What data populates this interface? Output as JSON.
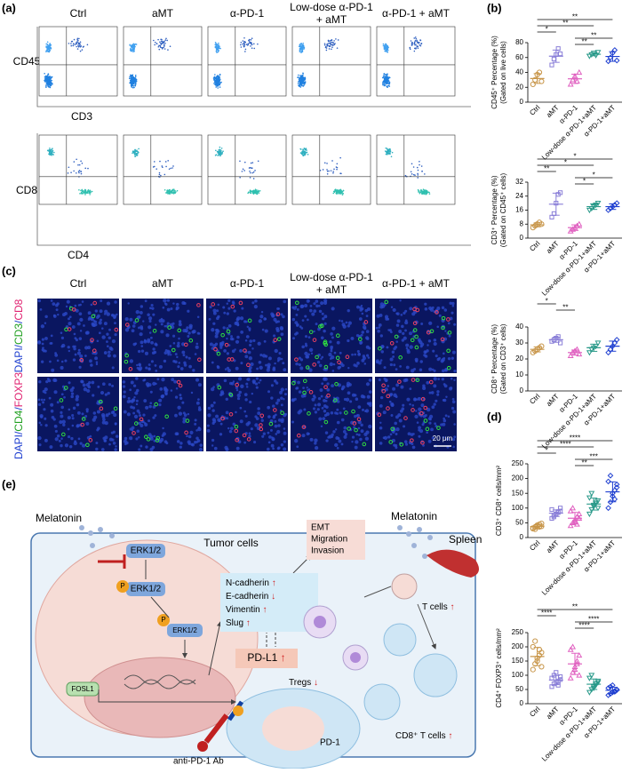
{
  "panel_labels": [
    "(a)",
    "(b)",
    "(c)",
    "(d)",
    "(e)"
  ],
  "flow": {
    "columns": [
      [
        "Ctrl"
      ],
      [
        "aMT"
      ],
      [
        "α-PD-1"
      ],
      [
        "Low-dose α-PD-1",
        "+ aMT"
      ],
      [
        "α-PD-1 + aMT"
      ]
    ],
    "row1_axes": [
      "CD45",
      "CD3"
    ],
    "row2_axes": [
      "CD8",
      "CD4"
    ]
  },
  "imaging": {
    "columns": [
      [
        "Ctrl"
      ],
      [
        "aMT"
      ],
      [
        "α-PD-1"
      ],
      [
        "Low-dose α-PD-1",
        "+ aMT"
      ],
      [
        "α-PD-1 + aMT"
      ]
    ],
    "row_labels": [
      [
        "DAPI/",
        "CD3",
        "/",
        "CD8"
      ],
      [
        "DAPI/",
        "CD4",
        "/",
        "FOXP3"
      ]
    ],
    "scale_bar": "20 μm"
  },
  "chart_data": [
    {
      "type": "scatter",
      "ylabel": [
        "CD45⁺ Percentage (%)",
        "(Gated on live cells)"
      ],
      "categories": [
        "Ctrl",
        "aMT",
        "α-PD-1",
        "Low-dose α-PD-1+aMT",
        "α-PD-1+aMT"
      ],
      "ylim": [
        0,
        80
      ],
      "yticks": [
        0,
        20,
        40,
        60,
        80
      ],
      "series": [
        {
          "name": "Ctrl",
          "color": "#c8964a",
          "marker": "circle",
          "values": [
            24,
            30,
            37,
            40,
            28
          ]
        },
        {
          "name": "aMT",
          "color": "#8a7fd8",
          "marker": "square",
          "values": [
            50,
            58,
            64,
            72,
            65
          ]
        },
        {
          "name": "α-PD-1",
          "color": "#e060c0",
          "marker": "triangle",
          "values": [
            24,
            30,
            35,
            28,
            40
          ]
        },
        {
          "name": "Low-dose α-PD-1+aMT",
          "color": "#2a9a8a",
          "marker": "down-triangle",
          "values": [
            62,
            64,
            66,
            63,
            67
          ]
        },
        {
          "name": "α-PD-1+aMT",
          "color": "#2040d0",
          "marker": "diamond",
          "values": [
            55,
            60,
            66,
            70,
            56
          ]
        }
      ],
      "significance": [
        {
          "from": "Ctrl",
          "to": "α-PD-1+aMT",
          "label": "**"
        },
        {
          "from": "Ctrl",
          "to": "Low-dose α-PD-1+aMT",
          "label": "**"
        },
        {
          "from": "Ctrl",
          "to": "aMT",
          "label": "*"
        },
        {
          "from": "α-PD-1",
          "to": "α-PD-1+aMT",
          "label": "**"
        },
        {
          "from": "α-PD-1",
          "to": "Low-dose α-PD-1+aMT",
          "label": "**"
        }
      ]
    },
    {
      "type": "scatter",
      "ylabel": [
        "CD3⁺ Percentage (%)",
        "(Gated on CD45⁺ cells)"
      ],
      "categories": [
        "Ctrl",
        "aMT",
        "α-PD-1",
        "Low-dose α-PD-1+aMT",
        "α-PD-1+aMT"
      ],
      "ylim": [
        0,
        32
      ],
      "yticks": [
        0,
        8,
        16,
        24,
        32
      ],
      "series": [
        {
          "name": "Ctrl",
          "color": "#c8964a",
          "marker": "circle",
          "values": [
            6,
            7,
            8,
            9,
            8
          ]
        },
        {
          "name": "aMT",
          "color": "#8a7fd8",
          "marker": "square",
          "values": [
            12,
            14,
            20,
            25,
            26
          ]
        },
        {
          "name": "α-PD-1",
          "color": "#e060c0",
          "marker": "triangle",
          "values": [
            4,
            5,
            6,
            7,
            8
          ]
        },
        {
          "name": "Low-dose α-PD-1+aMT",
          "color": "#2a9a8a",
          "marker": "down-triangle",
          "values": [
            16,
            17,
            18,
            19,
            20
          ]
        },
        {
          "name": "α-PD-1+aMT",
          "color": "#2040d0",
          "marker": "diamond",
          "values": [
            16,
            17,
            18,
            19,
            20
          ]
        }
      ],
      "significance": [
        {
          "from": "Ctrl",
          "to": "α-PD-1+aMT",
          "label": "*"
        },
        {
          "from": "Ctrl",
          "to": "Low-dose α-PD-1+aMT",
          "label": "*"
        },
        {
          "from": "Ctrl",
          "to": "aMT",
          "label": "**"
        },
        {
          "from": "α-PD-1",
          "to": "α-PD-1+aMT",
          "label": "*"
        },
        {
          "from": "α-PD-1",
          "to": "Low-dose α-PD-1+aMT",
          "label": "*"
        }
      ]
    },
    {
      "type": "scatter",
      "ylabel": [
        "CD8⁺ Percentage (%)",
        "(Gated on CD3⁺ cells)"
      ],
      "categories": [
        "Ctrl",
        "aMT",
        "α-PD-1",
        "Low-dose α-PD-1+aMT",
        "α-PD-1+aMT"
      ],
      "ylim": [
        0,
        40
      ],
      "yticks": [
        0,
        10,
        20,
        30,
        40
      ],
      "series": [
        {
          "name": "Ctrl",
          "color": "#c8964a",
          "marker": "circle",
          "values": [
            24,
            25,
            26,
            27,
            28
          ]
        },
        {
          "name": "aMT",
          "color": "#8a7fd8",
          "marker": "square",
          "values": [
            31,
            32,
            33,
            34,
            30
          ]
        },
        {
          "name": "α-PD-1",
          "color": "#e060c0",
          "marker": "triangle",
          "values": [
            22,
            24,
            25,
            26,
            23
          ]
        },
        {
          "name": "Low-dose α-PD-1+aMT",
          "color": "#2a9a8a",
          "marker": "down-triangle",
          "values": [
            24,
            26,
            27,
            28,
            30
          ]
        },
        {
          "name": "α-PD-1+aMT",
          "color": "#2040d0",
          "marker": "diamond",
          "values": [
            24,
            26,
            28,
            30,
            32
          ]
        }
      ],
      "significance": [
        {
          "from": "Ctrl",
          "to": "aMT",
          "label": "*"
        },
        {
          "from": "aMT",
          "to": "α-PD-1",
          "label": "**"
        }
      ]
    },
    {
      "type": "scatter",
      "ylabel": [
        "CD3⁺ CD8⁺ cells/mm²"
      ],
      "categories": [
        "Ctrl",
        "aMT",
        "α-PD-1",
        "Low-dose α-PD-1+aMT",
        "α-PD-1+aMT"
      ],
      "ylim": [
        0,
        250
      ],
      "yticks": [
        0,
        50,
        100,
        150,
        200,
        250
      ],
      "series": [
        {
          "name": "Ctrl",
          "color": "#c8964a",
          "marker": "circle",
          "values": [
            30,
            35,
            40,
            45,
            38,
            32,
            28,
            42,
            36,
            48
          ]
        },
        {
          "name": "aMT",
          "color": "#8a7fd8",
          "marker": "square",
          "values": [
            65,
            75,
            80,
            85,
            90,
            95,
            70,
            78,
            88,
            100
          ]
        },
        {
          "name": "α-PD-1",
          "color": "#e060c0",
          "marker": "triangle",
          "values": [
            40,
            50,
            60,
            70,
            80,
            90,
            100,
            55,
            45,
            65
          ]
        },
        {
          "name": "Low-dose α-PD-1+aMT",
          "color": "#2a9a8a",
          "marker": "down-triangle",
          "values": [
            80,
            95,
            105,
            115,
            125,
            135,
            150,
            110,
            120,
            100
          ]
        },
        {
          "name": "α-PD-1+aMT",
          "color": "#2040d0",
          "marker": "diamond",
          "values": [
            100,
            120,
            140,
            160,
            180,
            190,
            210,
            150,
            130,
            170
          ]
        }
      ],
      "significance": [
        {
          "from": "Ctrl",
          "to": "α-PD-1+aMT",
          "label": "****"
        },
        {
          "from": "Ctrl",
          "to": "Low-dose α-PD-1+aMT",
          "label": "****"
        },
        {
          "from": "Ctrl",
          "to": "aMT",
          "label": "*"
        },
        {
          "from": "α-PD-1",
          "to": "α-PD-1+aMT",
          "label": "***"
        },
        {
          "from": "α-PD-1",
          "to": "Low-dose α-PD-1+aMT",
          "label": "**"
        }
      ]
    },
    {
      "type": "scatter",
      "ylabel": [
        "CD4⁺ FOXP3⁺ cells/mm²"
      ],
      "categories": [
        "Ctrl",
        "aMT",
        "α-PD-1",
        "Low-dose α-PD-1+aMT",
        "α-PD-1+aMT"
      ],
      "ylim": [
        0,
        250
      ],
      "yticks": [
        0,
        50,
        100,
        150,
        200,
        250
      ],
      "series": [
        {
          "name": "Ctrl",
          "color": "#c8964a",
          "marker": "circle",
          "values": [
            120,
            140,
            160,
            170,
            180,
            200,
            220,
            150,
            190,
            130
          ]
        },
        {
          "name": "aMT",
          "color": "#8a7fd8",
          "marker": "square",
          "values": [
            60,
            70,
            75,
            80,
            85,
            90,
            100,
            110,
            65,
            95
          ]
        },
        {
          "name": "α-PD-1",
          "color": "#e060c0",
          "marker": "triangle",
          "values": [
            90,
            110,
            130,
            150,
            170,
            190,
            200,
            120,
            140,
            100
          ]
        },
        {
          "name": "Low-dose α-PD-1+aMT",
          "color": "#2a9a8a",
          "marker": "down-triangle",
          "values": [
            40,
            50,
            60,
            70,
            80,
            90,
            100,
            55,
            65,
            75
          ]
        },
        {
          "name": "α-PD-1+aMT",
          "color": "#2040d0",
          "marker": "diamond",
          "values": [
            30,
            35,
            40,
            45,
            50,
            55,
            60,
            65,
            42,
            48
          ]
        }
      ],
      "significance": [
        {
          "from": "Ctrl",
          "to": "α-PD-1+aMT",
          "label": "**"
        },
        {
          "from": "Ctrl",
          "to": "aMT",
          "label": "****"
        },
        {
          "from": "α-PD-1",
          "to": "α-PD-1+aMT",
          "label": "****"
        },
        {
          "from": "α-PD-1",
          "to": "Low-dose α-PD-1+aMT",
          "label": "****"
        }
      ]
    }
  ],
  "diagram": {
    "melatonin_left": "Melatonin",
    "melatonin_right": "Melatonin",
    "tumor_cells": "Tumor cells",
    "erk": [
      "ERK1/2",
      "ERK1/2",
      "ERK1/2"
    ],
    "phospho": [
      "P",
      "P"
    ],
    "fosl1": "FOSL1",
    "emt": [
      "EMT",
      "Migration",
      "Invasion"
    ],
    "markers": [
      {
        "text": "N-cadherin",
        "arrow": "↑"
      },
      {
        "text": "E-cadherin",
        "arrow": "↓"
      },
      {
        "text": "Vimentin",
        "arrow": "↑"
      },
      {
        "text": "Slug",
        "arrow": "↑"
      }
    ],
    "pdl1": {
      "text": "PD-L1",
      "arrow": "↑"
    },
    "pd1": "PD-1",
    "antibody": "anti-PD-1 Ab",
    "spleen": "Spleen",
    "t_cells": {
      "text": "T cells",
      "arrow": "↑"
    },
    "tregs": {
      "text": "Tregs",
      "arrow": "↓"
    },
    "cd8": {
      "text": "CD8⁺ T cells",
      "arrow": "↑"
    }
  }
}
